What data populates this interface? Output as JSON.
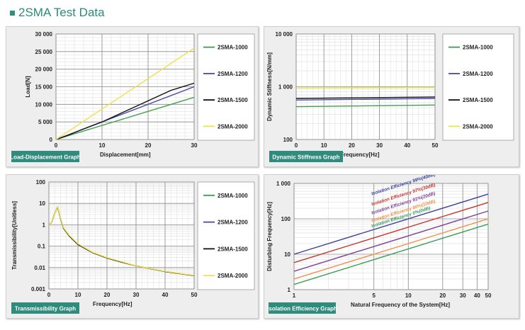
{
  "page": {
    "title": "2SMA Test Data",
    "accent": "#2b8a78"
  },
  "series_colors": {
    "2SMA-1000": "#3f9f4f",
    "2SMA-1200": "#4a4aa2",
    "2SMA-1500": "#111111",
    "2SMA-2000": "#f0e24a"
  },
  "chart_data": [
    {
      "type": "line",
      "badge": "Load-Displacement Graph",
      "xlabel": "Displacement[mm]",
      "ylabel": "Load[N]",
      "xlim": [
        0,
        30
      ],
      "ylim": [
        0,
        30000
      ],
      "xticks": [
        "0",
        "10",
        "20",
        "30"
      ],
      "yticks": [
        "0",
        "5 000",
        "10 000",
        "15 000",
        "20 000",
        "25 000",
        "30 000"
      ],
      "legend": "right",
      "series": [
        {
          "name": "2SMA-1000",
          "x": [
            0,
            30
          ],
          "y": [
            0,
            12000
          ]
        },
        {
          "name": "2SMA-1200",
          "x": [
            0,
            30
          ],
          "y": [
            0,
            15000
          ]
        },
        {
          "name": "2SMA-1500",
          "x": [
            0,
            2,
            6,
            10,
            15,
            20,
            25,
            30
          ],
          "y": [
            0,
            900,
            3000,
            5000,
            8000,
            11000,
            14000,
            16000
          ]
        },
        {
          "name": "2SMA-2000",
          "x": [
            0,
            30
          ],
          "y": [
            0,
            26000
          ]
        }
      ]
    },
    {
      "type": "line",
      "badge": "Dynamic Stiffness Graph",
      "xlabel": "Frequency[Hz]",
      "ylabel": "Dynamic Stiffness[N/mm]",
      "xlim": [
        0,
        50
      ],
      "ylim": [
        100,
        10000
      ],
      "yscale": "log",
      "xticks": [
        "0",
        "10",
        "20",
        "30",
        "40",
        "50"
      ],
      "yticks": [
        "100",
        "1 000",
        "10 000"
      ],
      "legend": "right",
      "series": [
        {
          "name": "2SMA-1000",
          "x": [
            0,
            50
          ],
          "y": [
            420,
            450
          ]
        },
        {
          "name": "2SMA-1200",
          "x": [
            0,
            50
          ],
          "y": [
            560,
            600
          ]
        },
        {
          "name": "2SMA-1500",
          "x": [
            0,
            50
          ],
          "y": [
            600,
            640
          ]
        },
        {
          "name": "2SMA-2000",
          "x": [
            0,
            50
          ],
          "y": [
            950,
            970
          ]
        }
      ]
    },
    {
      "type": "line",
      "badge": "Transmissibility Graph",
      "xlabel": "Frequency[Hz]",
      "ylabel": "Transmissibility[Unitless]",
      "xlim": [
        0,
        50
      ],
      "ylim": [
        0.001,
        100
      ],
      "yscale": "log",
      "xticks": [
        "0",
        "10",
        "20",
        "30",
        "40",
        "50"
      ],
      "yticks": [
        "0.001",
        "0.01",
        "0.1",
        "1",
        "10",
        "100"
      ],
      "legend": "right",
      "series": [
        {
          "name": "2SMA-1000",
          "x": [
            0,
            1,
            2,
            3,
            4,
            5,
            7,
            10,
            15,
            20,
            25,
            30,
            40,
            50
          ],
          "y": [
            1,
            1.3,
            3.5,
            7,
            2,
            0.7,
            0.3,
            0.12,
            0.05,
            0.028,
            0.018,
            0.012,
            0.0065,
            0.0042
          ]
        },
        {
          "name": "2SMA-1200",
          "x": [
            0,
            1,
            2,
            3,
            4,
            5,
            7,
            10,
            15,
            20,
            25,
            30,
            40,
            50
          ],
          "y": [
            1,
            1.3,
            3.5,
            7,
            2,
            0.7,
            0.3,
            0.12,
            0.05,
            0.028,
            0.018,
            0.012,
            0.0065,
            0.0042
          ]
        },
        {
          "name": "2SMA-1500",
          "x": [
            0,
            1,
            2,
            3,
            4,
            5,
            7,
            10,
            15,
            20,
            25,
            30,
            40,
            50
          ],
          "y": [
            1,
            1.3,
            3.5,
            7,
            2,
            0.7,
            0.3,
            0.12,
            0.05,
            0.028,
            0.018,
            0.012,
            0.0065,
            0.0042
          ]
        },
        {
          "name": "2SMA-2000",
          "x": [
            0,
            1,
            2,
            3,
            4,
            5,
            7,
            10,
            15,
            20,
            25,
            30,
            40,
            50
          ],
          "y": [
            1,
            1.3,
            3.5,
            7.2,
            2.1,
            0.75,
            0.32,
            0.13,
            0.052,
            0.029,
            0.019,
            0.012,
            0.0066,
            0.0043
          ]
        }
      ]
    },
    {
      "type": "line",
      "badge": "Isolation Efficiency Graph",
      "xlabel": "Natural Frequency of the System[Hz]",
      "ylabel": "Disturbing Frequency[Hz]",
      "xlim": [
        1,
        50
      ],
      "ylim": [
        1,
        1000
      ],
      "xscale": "log",
      "yscale": "log",
      "xticks": [
        "1",
        "5",
        "10",
        "20",
        "30",
        "40",
        "50"
      ],
      "xtick_values": [
        1,
        5,
        10,
        20,
        30,
        40,
        50
      ],
      "yticks": [
        "1",
        "10",
        "100",
        "1 000"
      ],
      "series": [
        {
          "name": "Isolation Efficiency 99%(40dB)",
          "color": "#3b3f9a",
          "x": [
            1,
            50
          ],
          "y": [
            10,
            500
          ]
        },
        {
          "name": "Isolation Efficiency 97%(30dB)",
          "color": "#c8342c",
          "x": [
            1,
            50
          ],
          "y": [
            5.8,
            290
          ]
        },
        {
          "name": "Isolation Efficiency 91%(20dB)",
          "color": "#7a3f98",
          "x": [
            1,
            50
          ],
          "y": [
            3.3,
            166
          ]
        },
        {
          "name": "Isolation Efficiency 80%(10dB)",
          "color": "#f0904a",
          "x": [
            1,
            50
          ],
          "y": [
            2,
            100
          ]
        },
        {
          "name": "Isolation Efficiency 0%(0dB)",
          "color": "#3a9f5a",
          "x": [
            1,
            50
          ],
          "y": [
            1.4,
            71
          ]
        }
      ]
    }
  ]
}
